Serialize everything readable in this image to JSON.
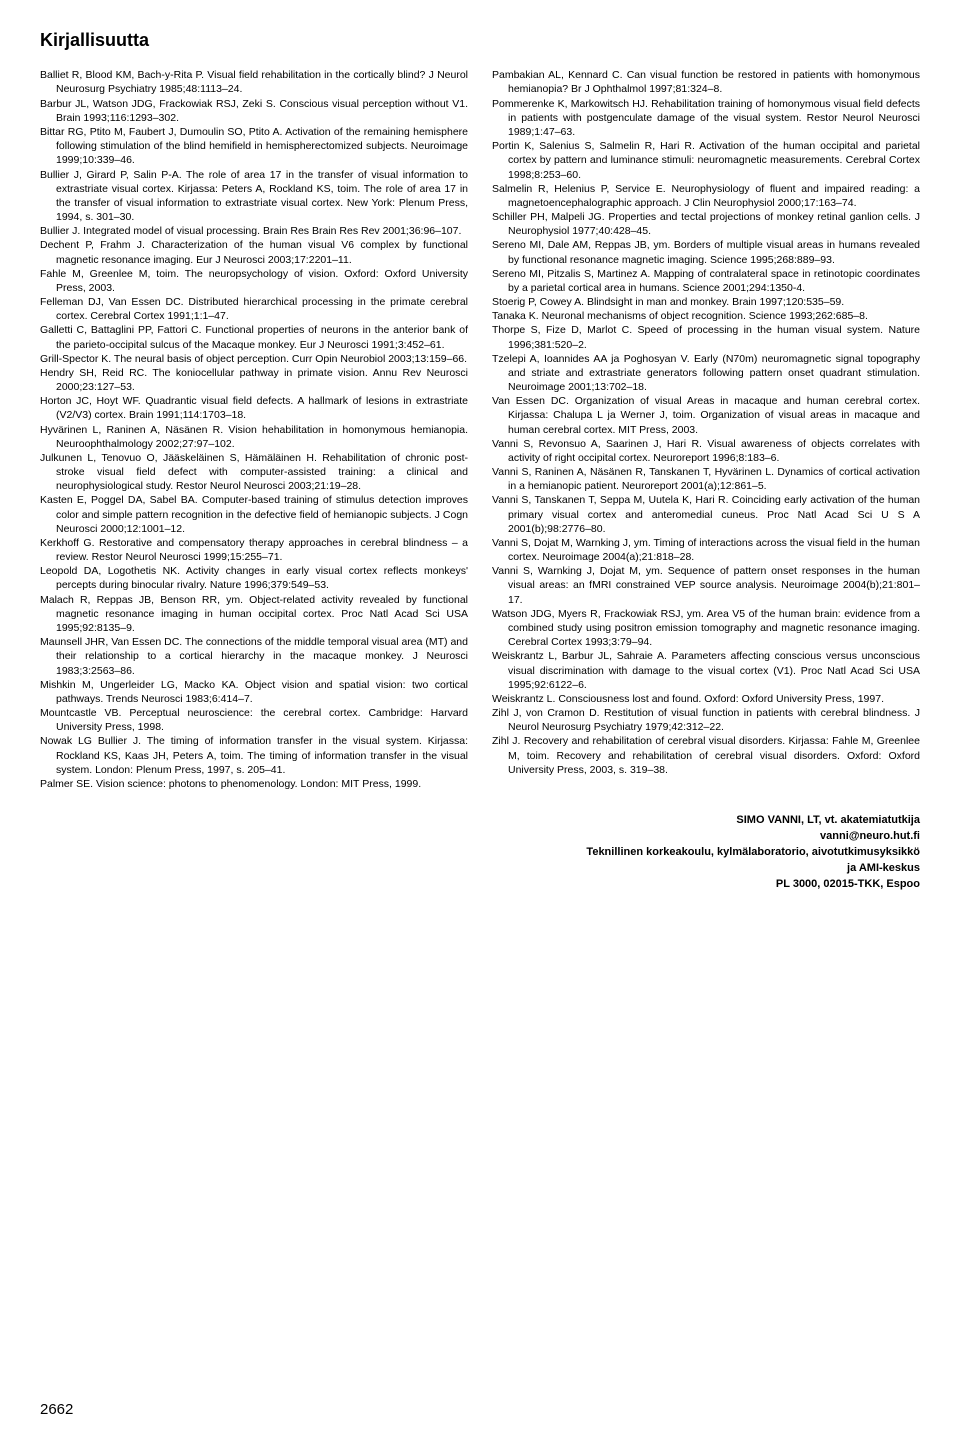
{
  "sectionTitle": "Kirjallisuutta",
  "references": [
    "Balliet R, Blood KM, Bach-y-Rita P. Visual field rehabilitation in the cortically blind? J Neurol Neurosurg Psychiatry 1985;48:1113–24.",
    "Barbur JL, Watson JDG, Frackowiak RSJ, Zeki S. Conscious visual perception without V1. Brain 1993;116:1293–302.",
    "Bittar RG, Ptito M, Faubert J, Dumoulin SO, Ptito A. Activation of the remaining hemisphere following stimulation of the blind hemifield in hemispherectomized subjects. Neuroimage 1999;10:339–46.",
    "Bullier J, Girard P, Salin P-A. The role of area 17 in the transfer of visual information to extrastriate visual cortex. Kirjassa: Peters A, Rockland KS, toim. The role of area 17 in the transfer of visual information to extrastriate visual cortex. New York: Plenum Press, 1994, s. 301–30.",
    "Bullier J. Integrated model of visual processing. Brain Res Brain Res Rev 2001;36:96–107.",
    "Dechent P, Frahm J. Characterization of the human visual V6 complex by functional magnetic resonance imaging. Eur J Neurosci 2003;17:2201–11.",
    "Fahle M, Greenlee M, toim. The neuropsychology of vision. Oxford: Oxford University Press, 2003.",
    "Felleman DJ, Van Essen DC. Distributed hierarchical processing in the primate cerebral cortex. Cerebral Cortex 1991;1:1–47.",
    "Galletti C, Battaglini PP, Fattori C. Functional properties of neurons in the anterior bank of the parieto-occipital sulcus of the Macaque monkey. Eur J Neurosci 1991;3:452–61.",
    "Grill-Spector K. The neural basis of object perception. Curr Opin Neurobiol 2003;13:159–66.",
    "Hendry SH, Reid RC. The koniocellular pathway in primate vision. Annu Rev Neurosci 2000;23:127–53.",
    "Horton JC, Hoyt WF. Quadrantic visual field defects. A hallmark of lesions in extrastriate (V2/V3) cortex. Brain 1991;114:1703–18.",
    "Hyvärinen L, Raninen A, Näsänen R. Vision hehabilitation in homonymous hemianopia. Neuroophthalmology 2002;27:97–102.",
    "Julkunen L, Tenovuo O, Jääskeläinen S, Hämäläinen H. Rehabilitation of chronic post-stroke visual field defect with computer-assisted training: a clinical and neurophysiological study. Restor Neurol Neurosci 2003;21:19–28.",
    "Kasten E, Poggel DA, Sabel BA. Computer-based training of stimulus detection improves color and simple pattern recognition in the defective field of hemianopic subjects. J Cogn Neurosci 2000;12:1001–12.",
    "Kerkhoff G. Restorative and compensatory therapy approaches in cerebral blindness – a review. Restor Neurol Neurosci 1999;15:255–71.",
    "Leopold DA, Logothetis NK. Activity changes in early visual cortex reflects monkeys' percepts during binocular rivalry. Nature 1996;379:549–53.",
    "Malach R, Reppas JB, Benson RR, ym. Object-related activity revealed by functional magnetic resonance imaging in human occipital cortex. Proc Natl Acad Sci USA 1995;92:8135–9.",
    "Maunsell JHR, Van Essen DC. The connections of the middle temporal visual area (MT) and their relationship to a cortical hierarchy in the macaque monkey. J Neurosci 1983;3:2563–86.",
    "Mishkin M, Ungerleider LG, Macko KA. Object vision and spatial vision: two cortical pathways. Trends Neurosci 1983;6:414–7.",
    "Mountcastle VB. Perceptual neuroscience: the cerebral cortex. Cambridge: Harvard University Press, 1998.",
    "Nowak LG Bullier J. The timing of information transfer in the visual system. Kirjassa: Rockland KS, Kaas JH, Peters A, toim. The timing of information transfer in the visual system. London: Plenum Press, 1997, s. 205–41.",
    "Palmer SE. Vision science: photons to phenomenology. London: MIT Press, 1999.",
    "Pambakian AL, Kennard C. Can visual function be restored in patients with homonymous hemianopia? Br J Ophthalmol 1997;81:324–8.",
    "Pommerenke K, Markowitsch HJ. Rehabilitation training of homonymous visual field defects in patients with postgenculate damage of the visual system. Restor Neurol Neurosci 1989;1:47–63.",
    "Portin K, Salenius S, Salmelin R, Hari R. Activation of the human occipital and parietal cortex by pattern and luminance stimuli: neuromagnetic measurements. Cerebral Cortex 1998;8:253–60.",
    "Salmelin R, Helenius P, Service E. Neurophysiology of fluent and impaired reading: a magnetoencephalographic approach. J Clin Neurophysiol 2000;17:163–74.",
    "Schiller PH, Malpeli JG. Properties and tectal projections of monkey retinal ganlion cells. J Neurophysiol 1977;40:428–45.",
    "Sereno MI, Dale AM, Reppas JB, ym. Borders of multiple visual areas in humans revealed by functional resonance magnetic imaging. Science 1995;268:889–93.",
    "Sereno MI, Pitzalis S, Martinez A. Mapping of contralateral space in retinotopic coordinates by a parietal cortical area in humans. Science 2001;294:1350-4.",
    "Stoerig P, Cowey A. Blindsight in man and monkey. Brain 1997;120:535–59.",
    "Tanaka K. Neuronal mechanisms of object recognition. Science 1993;262:685–8.",
    "Thorpe S, Fize D, Marlot C. Speed of processing in the human visual system. Nature 1996;381:520–2.",
    "Tzelepi A, Ioannides AA ja Poghosyan V. Early (N70m) neuromagnetic signal topography and striate and extrastriate generators following pattern onset quadrant stimulation. Neuroimage 2001;13:702–18.",
    "Van Essen DC. Organization of visual Areas in macaque and human cerebral cortex. Kirjassa: Chalupa L ja Werner J, toim. Organization of visual areas in macaque and human cerebral cortex. MIT Press, 2003.",
    "Vanni S, Revonsuo A, Saarinen J, Hari R. Visual awareness of objects correlates with activity of right occipital cortex. Neuroreport 1996;8:183–6.",
    "Vanni S, Raninen A, Näsänen R, Tanskanen T, Hyvärinen L. Dynamics of cortical activation in a hemianopic patient. Neuroreport 2001(a);12:861–5.",
    "Vanni S, Tanskanen T, Seppa M, Uutela K, Hari R. Coinciding early activation of the human primary visual cortex and anteromedial cuneus. Proc Natl Acad Sci U S A 2001(b);98:2776–80.",
    "Vanni S, Dojat M, Warnking J, ym. Timing of interactions across the visual field in the human cortex. Neuroimage 2004(a);21:818–28.",
    "Vanni S, Warnking J, Dojat M, ym. Sequence of pattern onset responses in the human visual areas: an fMRI constrained VEP source analysis. Neuroimage 2004(b);21:801–17.",
    "Watson JDG, Myers R, Frackowiak RSJ, ym. Area V5 of the human brain: evidence from a combined study using positron emission tomography and magnetic resonance imaging. Cerebral Cortex 1993;3:79–94.",
    "Weiskrantz L, Barbur JL, Sahraie A. Parameters affecting conscious versus unconscious visual discrimination with damage to the visual cortex (V1). Proc Natl Acad Sci USA 1995;92:6122–6.",
    "Weiskrantz L. Consciousness lost and found. Oxford: Oxford University Press, 1997.",
    "Zihl J, von Cramon D. Restitution of visual function in patients with cerebral blindness. J Neurol Neurosurg Psychiatry 1979;42:312–22.",
    "Zihl J. Recovery and rehabilitation of cerebral visual disorders. Kirjassa: Fahle M, Greenlee M, toim. Recovery and rehabilitation of cerebral visual disorders. Oxford: Oxford University Press, 2003, s. 319–38."
  ],
  "authorBlock": {
    "line1": "SIMO VANNI, LT, vt. akatemiatutkija",
    "line2": "vanni@neuro.hut.fi",
    "line3": "Teknillinen korkeakoulu, kylmälaboratorio, aivotutkimusyksikkö",
    "line4": "ja AMI-keskus",
    "line5": "PL 3000, 02015-TKK, Espoo"
  },
  "pageNumber": "2662"
}
